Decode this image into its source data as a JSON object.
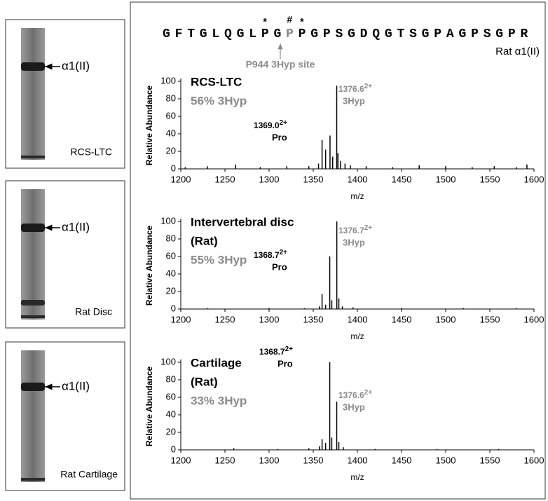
{
  "gels": [
    {
      "band_label": "α1(II)",
      "caption": "RCS-LTC"
    },
    {
      "band_label": "α1(II)",
      "caption": "Rat Disc"
    },
    {
      "band_label": "α1(II)",
      "caption": "Rat Cartilage"
    }
  ],
  "sequence": {
    "segments": [
      {
        "text": "GFTGLQGL"
      },
      {
        "text": "P",
        "mark": "*"
      },
      {
        "text": "G"
      },
      {
        "text": "P",
        "mark": "#",
        "color": "#8a8a8a"
      },
      {
        "text": "P",
        "mark": "*"
      },
      {
        "text": "GPSGDQGTSGPAGPSGPR"
      }
    ],
    "site_note": "P944 3Hyp site",
    "chain": "Rat α1(II)"
  },
  "chart_data": [
    {
      "type": "spectrum",
      "title": [
        "RCS-LTC"
      ],
      "subtitle": "56% 3Hyp",
      "subtitle_color": "#8a8a8a",
      "color": "#000000",
      "x_label": "m/z",
      "y_label": "Relative Abundance",
      "x": [
        1205,
        1230,
        1262,
        1290,
        1320,
        1345,
        1356,
        1360,
        1364,
        1369,
        1372,
        1376.6,
        1378,
        1381,
        1386,
        1392,
        1410,
        1440,
        1470,
        1500,
        1530,
        1555,
        1580,
        1592
      ],
      "values": [
        2,
        3,
        5,
        2,
        3,
        3,
        6,
        33,
        22,
        38,
        14,
        95,
        18,
        9,
        6,
        4,
        3,
        2,
        4,
        3,
        2,
        3,
        2,
        5
      ],
      "annotations": [
        {
          "mass": "1376.6",
          "charge": "2+",
          "note": "3Hyp",
          "color": "#8a8a8a"
        },
        {
          "mass": "1369.0",
          "charge": "2+",
          "note": "Pro",
          "color": "#000000"
        }
      ],
      "xlim": [
        1200,
        1600
      ],
      "xticks": [
        1200,
        1250,
        1300,
        1350,
        1400,
        1450,
        1500,
        1550,
        1600
      ],
      "ylim": [
        0,
        100
      ],
      "yticks": [
        0,
        20,
        40,
        60,
        80,
        100
      ]
    },
    {
      "type": "spectrum",
      "title": [
        "Intervertebral disc",
        "(Rat)"
      ],
      "subtitle": "55% 3Hyp",
      "subtitle_color": "#8a8a8a",
      "color": "#000000",
      "x_label": "m/z",
      "y_label": "Relative Abundance",
      "x": [
        1230,
        1300,
        1340,
        1357,
        1360,
        1364,
        1368.7,
        1371,
        1376.7,
        1379,
        1383,
        1395,
        1450,
        1520,
        1580
      ],
      "values": [
        1,
        1,
        1,
        3,
        17,
        5,
        60,
        10,
        100,
        12,
        3,
        2,
        1,
        1,
        1
      ],
      "annotations": [
        {
          "mass": "1376.7",
          "charge": "2+",
          "note": "3Hyp",
          "color": "#8a8a8a"
        },
        {
          "mass": "1368.7",
          "charge": "2+",
          "note": "Pro",
          "color": "#000000"
        }
      ],
      "xlim": [
        1200,
        1600
      ],
      "xticks": [
        1200,
        1250,
        1300,
        1350,
        1400,
        1450,
        1500,
        1550,
        1600
      ],
      "ylim": [
        0,
        100
      ],
      "yticks": [
        0,
        20,
        40,
        60,
        80,
        100
      ]
    },
    {
      "type": "spectrum",
      "title": [
        "Cartilage",
        "(Rat)"
      ],
      "subtitle": "33% 3Hyp",
      "subtitle_color": "#8a8a8a",
      "color": "#000000",
      "x_label": "m/z",
      "y_label": "Relative Abundance",
      "x": [
        1260,
        1310,
        1345,
        1357,
        1360,
        1364,
        1368.7,
        1371,
        1376.6,
        1379,
        1384,
        1420,
        1490,
        1560
      ],
      "values": [
        2,
        1,
        2,
        4,
        12,
        8,
        100,
        14,
        55,
        9,
        3,
        1,
        1,
        1
      ],
      "annotations": [
        {
          "mass": "1368.7",
          "charge": "2+",
          "note": "Pro",
          "color": "#000000"
        },
        {
          "mass": "1376.6",
          "charge": "2+",
          "note": "3Hyp",
          "color": "#8a8a8a"
        }
      ],
      "xlim": [
        1200,
        1600
      ],
      "xticks": [
        1200,
        1250,
        1300,
        1350,
        1400,
        1450,
        1500,
        1550,
        1600
      ],
      "ylim": [
        0,
        100
      ],
      "yticks": [
        0,
        20,
        40,
        60,
        80,
        100
      ]
    }
  ]
}
